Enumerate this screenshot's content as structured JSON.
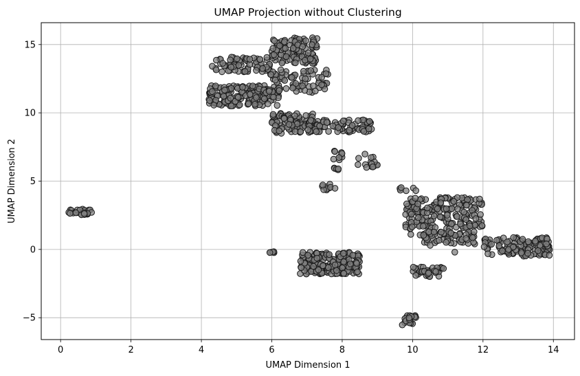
{
  "chart_data": {
    "type": "scatter",
    "title": "UMAP Projection without Clustering",
    "xlabel": "UMAP Dimension 1",
    "ylabel": "UMAP Dimension 2",
    "xlim": [
      -0.55,
      14.6
    ],
    "ylim": [
      -6.6,
      16.6
    ],
    "xticks": [
      0,
      2,
      4,
      6,
      8,
      10,
      12,
      14
    ],
    "yticks": [
      -5,
      0,
      5,
      10,
      15
    ],
    "xtick_labels": [
      "0",
      "2",
      "4",
      "6",
      "8",
      "10",
      "12",
      "14"
    ],
    "ytick_labels": [
      "−5",
      "0",
      "5",
      "10",
      "15"
    ],
    "grid": true,
    "marker_color": "#808080",
    "marker_edge_color": "#1a1a1a",
    "marker_alpha": 0.75,
    "clusters": [
      {
        "x_range": [
          0.15,
          0.9
        ],
        "y_range": [
          2.5,
          2.95
        ],
        "n": 28
      },
      {
        "x_range": [
          4.2,
          6.2
        ],
        "y_range": [
          10.5,
          12.0
        ],
        "n": 170
      },
      {
        "x_range": [
          4.3,
          6.0
        ],
        "y_range": [
          13.0,
          14.1
        ],
        "n": 70
      },
      {
        "x_range": [
          6.0,
          7.3
        ],
        "y_range": [
          13.6,
          15.5
        ],
        "n": 120
      },
      {
        "x_range": [
          5.9,
          7.6
        ],
        "y_range": [
          11.5,
          13.2
        ],
        "n": 80
      },
      {
        "x_range": [
          6.0,
          7.2
        ],
        "y_range": [
          8.5,
          10.0
        ],
        "n": 90
      },
      {
        "x_range": [
          7.0,
          8.9
        ],
        "y_range": [
          8.6,
          9.5
        ],
        "n": 90
      },
      {
        "x_range": [
          7.7,
          8.0
        ],
        "y_range": [
          6.5,
          7.2
        ],
        "n": 10
      },
      {
        "x_range": [
          7.75,
          7.95
        ],
        "y_range": [
          5.8,
          6.1
        ],
        "n": 5
      },
      {
        "x_range": [
          7.4,
          7.8
        ],
        "y_range": [
          4.3,
          4.8
        ],
        "n": 10
      },
      {
        "x_range": [
          8.4,
          9.0
        ],
        "y_range": [
          6.0,
          7.1
        ],
        "n": 15
      },
      {
        "x_range": [
          5.85,
          6.1
        ],
        "y_range": [
          -0.3,
          -0.15
        ],
        "n": 5
      },
      {
        "x_range": [
          6.8,
          8.5
        ],
        "y_range": [
          -1.8,
          -0.2
        ],
        "n": 200
      },
      {
        "x_range": [
          9.7,
          10.1
        ],
        "y_range": [
          -5.6,
          -4.8
        ],
        "n": 20
      },
      {
        "x_range": [
          10.0,
          10.9
        ],
        "y_range": [
          -2.0,
          -1.2
        ],
        "n": 35
      },
      {
        "x_range": [
          9.6,
          10.1
        ],
        "y_range": [
          4.2,
          4.6
        ],
        "n": 6
      },
      {
        "x_range": [
          9.8,
          12.0
        ],
        "y_range": [
          1.5,
          3.8
        ],
        "n": 190
      },
      {
        "x_range": [
          10.2,
          11.8
        ],
        "y_range": [
          0.4,
          1.3
        ],
        "n": 60
      },
      {
        "x_range": [
          12.0,
          13.9
        ],
        "y_range": [
          -0.5,
          0.9
        ],
        "n": 130
      }
    ],
    "isolated_points": [
      {
        "x": 9.95,
        "y": 1.1
      },
      {
        "x": 11.2,
        "y": -0.2
      },
      {
        "x": 10.5,
        "y": 0.3
      }
    ]
  }
}
